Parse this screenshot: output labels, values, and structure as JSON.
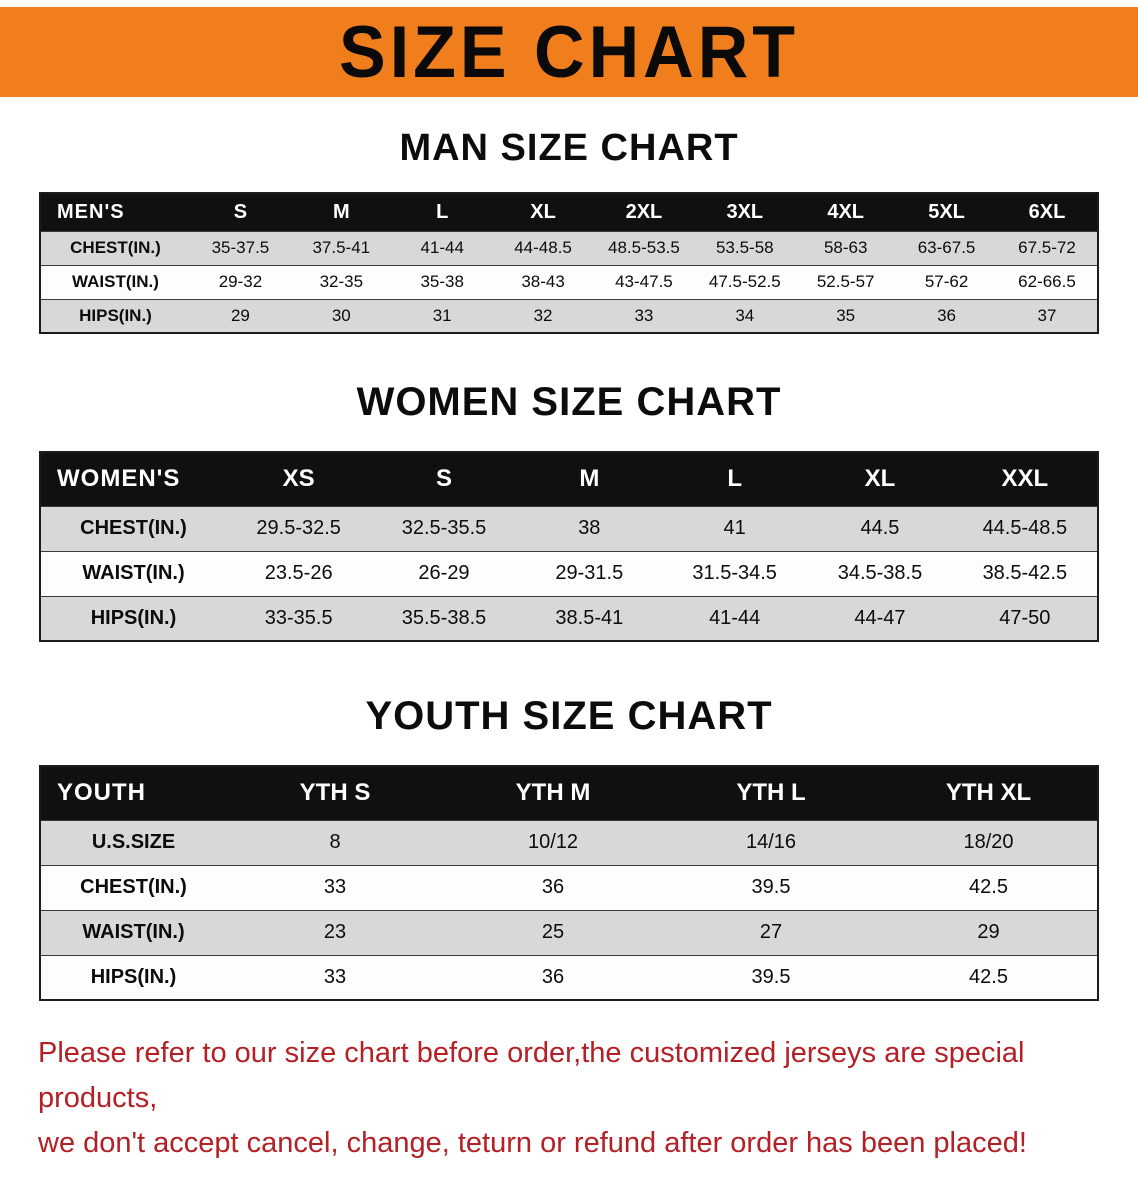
{
  "banner": {
    "title": "SIZE CHART"
  },
  "colors": {
    "banner-orange": "#f07e1c",
    "header-black": "#101010",
    "row-gray": "#d8d8d8",
    "row-white": "#fdfdfd",
    "note-red": "#b42025",
    "text-black": "#0c0c0c",
    "border-dark": "#1c1c1c"
  },
  "sections": [
    {
      "id": "men",
      "title": "MAN SIZE CHART",
      "table": {
        "header": [
          "MEN'S",
          "S",
          "M",
          "L",
          "XL",
          "2XL",
          "3XL",
          "4XL",
          "5XL",
          "6XL"
        ],
        "rows": [
          [
            "CHEST(IN.)",
            "35-37.5",
            "37.5-41",
            "41-44",
            "44-48.5",
            "48.5-53.5",
            "53.5-58",
            "58-63",
            "63-67.5",
            "67.5-72"
          ],
          [
            "WAIST(IN.)",
            "29-32",
            "32-35",
            "35-38",
            "38-43",
            "43-47.5",
            "47.5-52.5",
            "52.5-57",
            "57-62",
            "62-66.5"
          ],
          [
            "HIPS(IN.)",
            "29",
            "30",
            "31",
            "32",
            "33",
            "34",
            "35",
            "36",
            "37"
          ]
        ]
      }
    },
    {
      "id": "women",
      "title": "WOMEN SIZE CHART",
      "table": {
        "header": [
          "WOMEN'S",
          "XS",
          "S",
          "M",
          "L",
          "XL",
          "XXL"
        ],
        "rows": [
          [
            "CHEST(IN.)",
            "29.5-32.5",
            "32.5-35.5",
            "38",
            "41",
            "44.5",
            "44.5-48.5"
          ],
          [
            "WAIST(IN.)",
            "23.5-26",
            "26-29",
            "29-31.5",
            "31.5-34.5",
            "34.5-38.5",
            "38.5-42.5"
          ],
          [
            "HIPS(IN.)",
            "33-35.5",
            "35.5-38.5",
            "38.5-41",
            "41-44",
            "44-47",
            "47-50"
          ]
        ]
      }
    },
    {
      "id": "youth",
      "title": "YOUTH SIZE CHART",
      "table": {
        "header": [
          "YOUTH",
          "YTH S",
          "YTH M",
          "YTH L",
          "YTH XL"
        ],
        "rows": [
          [
            "U.S.SIZE",
            "8",
            "10/12",
            "14/16",
            "18/20"
          ],
          [
            "CHEST(IN.)",
            "33",
            "36",
            "39.5",
            "42.5"
          ],
          [
            "WAIST(IN.)",
            "23",
            "25",
            "27",
            "29"
          ],
          [
            "HIPS(IN.)",
            "33",
            "36",
            "39.5",
            "42.5"
          ]
        ]
      }
    }
  ],
  "note": {
    "lines": [
      "Please refer to our size chart before order,the customized jerseys are special products,",
      "we don't accept cancel, change, teturn or refund after order has been placed!"
    ]
  }
}
